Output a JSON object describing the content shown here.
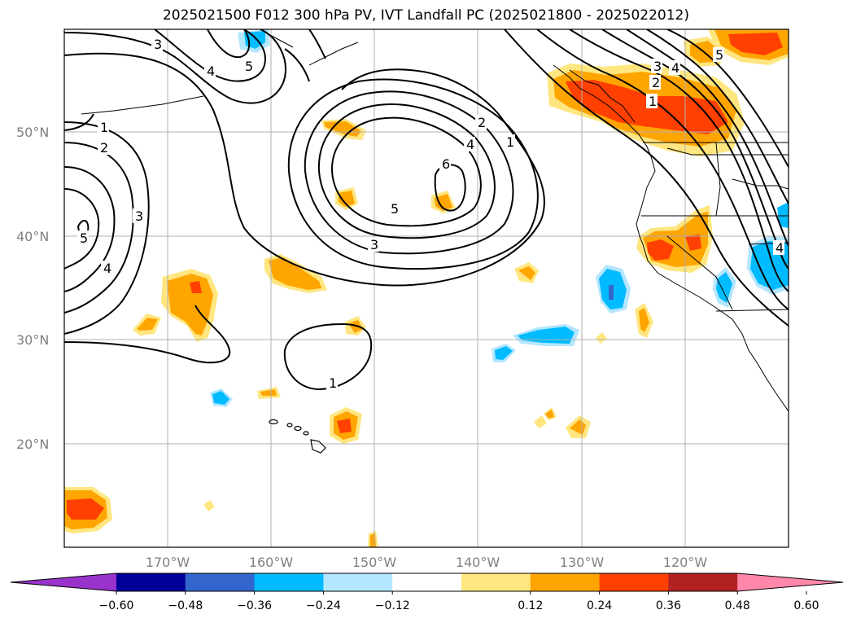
{
  "title": "2025021500 F012 300 hPa PV, IVT Landfall PC (2025021800 - 2025022012)",
  "lat_labels": [
    "50°N",
    "40°N",
    "30°N",
    "20°N"
  ],
  "lon_labels": [
    "170°W",
    "160°W",
    "150°W",
    "140°W",
    "130°W",
    "120°W"
  ],
  "colorbar": {
    "ticks": [
      "−0.60",
      "−0.48",
      "−0.36",
      "−0.24",
      "−0.12",
      "0.12",
      "0.24",
      "0.36",
      "0.48",
      "0.60"
    ],
    "colors": [
      "#9933cc",
      "#000099",
      "#3366cc",
      "#00bbff",
      "#b3e6ff",
      "#ffffff",
      "#ffe680",
      "#ffa500",
      "#ff4000",
      "#b22222",
      "#ff88aa"
    ],
    "extend": "both"
  },
  "contour_labels": [
    "1",
    "2",
    "3",
    "4",
    "5",
    "6"
  ],
  "colors": {
    "pv_contour": "#000000",
    "grid": "#b0b0b0",
    "coast": "#000000"
  }
}
